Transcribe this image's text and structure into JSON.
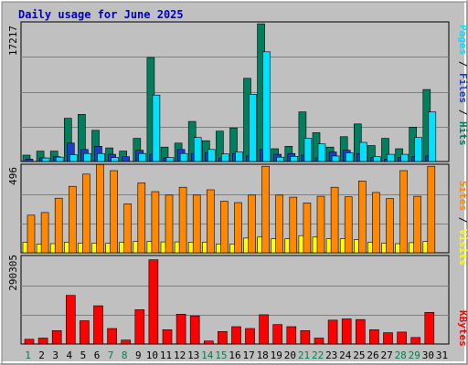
{
  "title": "Daily usage for June 2025",
  "colors": {
    "frame_bg": "#c0c0c0",
    "plot_bg": "#c0c0c0",
    "title": "#0000c0",
    "hits": "#007f5f",
    "files": "#1a3fc7",
    "pages": "#00e0ff",
    "visits": "#ffff00",
    "sites": "#ff8800",
    "kbytes": "#ff0000",
    "weekday": "#000000",
    "weekend": "#00804f",
    "grid": "#7f7f7f"
  },
  "panels": {
    "top": {
      "scale_label": "17217",
      "legend": [
        {
          "text": "Pages",
          "color_key": "pages"
        },
        {
          "text": " / ",
          "color_key": "weekday"
        },
        {
          "text": "Files",
          "color_key": "files"
        },
        {
          "text": " / ",
          "color_key": "weekday"
        },
        {
          "text": "Hits",
          "color_key": "hits"
        }
      ]
    },
    "middle": {
      "scale_label": "496",
      "legend": [
        {
          "text": "Sites",
          "color_key": "sites"
        },
        {
          "text": " / ",
          "color_key": "weekday"
        },
        {
          "text": "Visits",
          "color_key": "visits"
        }
      ]
    },
    "bottom": {
      "scale_label": "290305",
      "legend": [
        {
          "text": "KBytes",
          "color_key": "kbytes"
        }
      ]
    }
  },
  "chart_data": {
    "type": "bar",
    "title": "Daily usage for June 2025",
    "categories": [
      "1",
      "2",
      "3",
      "4",
      "5",
      "6",
      "7",
      "8",
      "9",
      "10",
      "11",
      "12",
      "13",
      "14",
      "15",
      "16",
      "17",
      "18",
      "19",
      "20",
      "21",
      "22",
      "23",
      "24",
      "25",
      "26",
      "27",
      "28",
      "29",
      "30",
      "31"
    ],
    "weekend_days": [
      1,
      7,
      8,
      14,
      15,
      21,
      22,
      28,
      29
    ],
    "panels": [
      {
        "name": "top",
        "ymax": 17217,
        "series": [
          {
            "name": "Hits",
            "values": [
              800,
              1300,
              1300,
              5400,
              5900,
              3900,
              1700,
              1300,
              2900,
              13000,
              1800,
              2300,
              5000,
              2600,
              3800,
              4200,
              10400,
              17200,
              1600,
              1900,
              6200,
              3600,
              1800,
              3100,
              4700,
              2000,
              2900,
              1600,
              4300,
              9000,
              0
            ]
          },
          {
            "name": "Files",
            "values": [
              300,
              450,
              600,
              2300,
              1500,
              1900,
              900,
              600,
              1400,
              900,
              450,
              1500,
              1000,
              1100,
              450,
              1000,
              700,
              1500,
              900,
              1000,
              800,
              450,
              1200,
              1400,
              1000,
              500,
              300,
              500,
              600,
              700,
              0
            ]
          },
          {
            "name": "Pages",
            "values": [
              0,
              450,
              550,
              850,
              1000,
              1000,
              500,
              0,
              1000,
              8300,
              500,
              1000,
              3000,
              1500,
              950,
              1200,
              8400,
              13700,
              550,
              650,
              2900,
              2200,
              700,
              1100,
              2400,
              600,
              900,
              900,
              3000,
              6200,
              0
            ]
          }
        ]
      },
      {
        "name": "middle",
        "ymax": 496,
        "series": [
          {
            "name": "Visits",
            "values": [
              60,
              49,
              52,
              60,
              55,
              55,
              54,
              60,
              65,
              65,
              62,
              62,
              60,
              60,
              50,
              50,
              84,
              90,
              80,
              80,
              98,
              90,
              80,
              80,
              75,
              60,
              55,
              52,
              58,
              65,
              0
            ]
          },
          {
            "name": "Sites",
            "values": [
              215,
              230,
              312,
              380,
              450,
              505,
              470,
              280,
              400,
              350,
              330,
              375,
              330,
              360,
              295,
              287,
              330,
              495,
              330,
              318,
              285,
              323,
              375,
              320,
              411,
              345,
              310,
              470,
              323,
              495,
              0
            ]
          }
        ]
      },
      {
        "name": "bottom",
        "ymax": 290305,
        "series": [
          {
            "name": "KBytes",
            "values": [
              16000,
              20000,
              45000,
              163000,
              78000,
              128000,
              52000,
              13000,
              115000,
              282000,
              48000,
              100000,
              94000,
              10000,
              42000,
              58000,
              52000,
              98000,
              65000,
              58000,
              45000,
              20000,
              80000,
              84000,
              82000,
              48000,
              38000,
              40000,
              22000,
              106000,
              0
            ]
          }
        ]
      }
    ]
  }
}
